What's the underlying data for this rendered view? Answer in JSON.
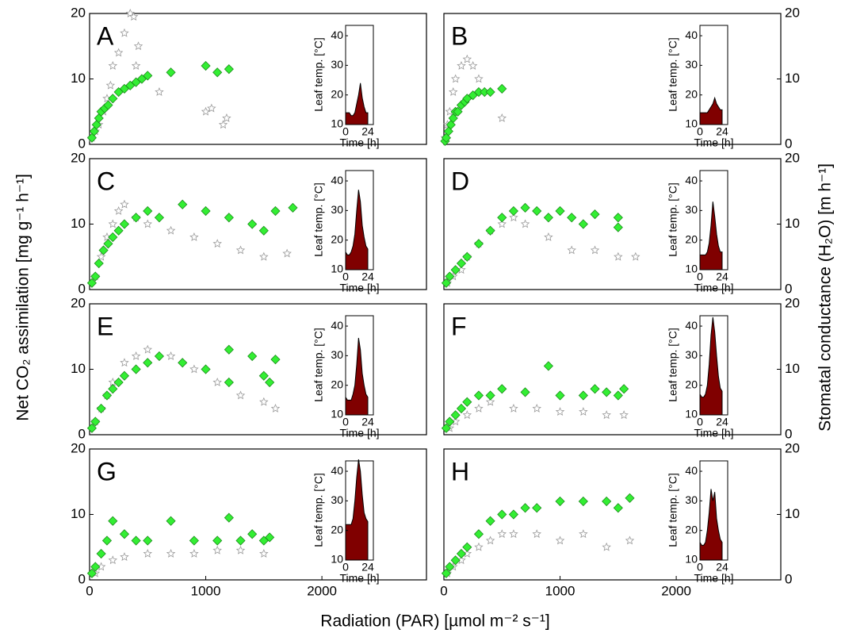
{
  "ylabel": "Net CO₂ assimilation [mg g⁻¹ h⁻¹]",
  "y2label": "Stomatal conductance (H₂O) [m h⁻¹]",
  "xlabel": "Radiation (PAR) [µmol m⁻² s⁻¹]",
  "chart_data": [
    {
      "type": "scatter",
      "label": "A",
      "xlim": [
        0,
        2900
      ],
      "ylim": [
        0,
        20
      ],
      "y2lim": [
        0,
        20
      ],
      "yticks": [
        0,
        10,
        20
      ],
      "series": [
        {
          "color": "#33ee33",
          "marker": "diamond",
          "x": [
            20,
            40,
            60,
            80,
            100,
            130,
            160,
            200,
            250,
            300,
            350,
            400,
            450,
            500,
            700,
            1000,
            1100,
            1200
          ],
          "values": [
            1,
            2,
            3,
            4,
            5,
            5.5,
            6,
            7,
            8,
            8.5,
            9,
            9.5,
            10,
            10.5,
            11,
            12,
            11,
            11.5
          ]
        },
        {
          "color": "#999999",
          "marker": "star",
          "axis": "y2",
          "x": [
            20,
            50,
            80,
            120,
            150,
            180,
            200,
            250,
            300,
            350,
            380,
            420,
            400,
            600,
            1000,
            1050,
            1150,
            1180
          ],
          "values": [
            1,
            2,
            3,
            5,
            7,
            9,
            12,
            14,
            17,
            20,
            19.5,
            15,
            12,
            8,
            5,
            5.5,
            3,
            4
          ]
        }
      ],
      "inset": {
        "type": "area",
        "xlabel": "Time [h]",
        "ylabel": "Leaf temp. [°C]",
        "color": "#800000",
        "xlim": [
          0,
          30
        ],
        "ylim": [
          10,
          43.5
        ],
        "xticks": [
          0,
          24
        ],
        "yticks": [
          10,
          20,
          30,
          40
        ],
        "x": [
          0,
          2,
          4,
          6,
          8,
          10,
          12,
          14,
          16,
          18,
          20,
          22,
          24
        ],
        "values": [
          14,
          14,
          14,
          13,
          13,
          14,
          17,
          20,
          24,
          19,
          16,
          14,
          14
        ]
      }
    },
    {
      "type": "scatter",
      "label": "B",
      "xlim": [
        0,
        2900
      ],
      "ylim": [
        0,
        20
      ],
      "y2lim": [
        0,
        20
      ],
      "y2ticks": [
        0,
        10,
        20
      ],
      "series": [
        {
          "color": "#33ee33",
          "marker": "diamond",
          "x": [
            10,
            20,
            40,
            60,
            80,
            100,
            120,
            150,
            180,
            200,
            250,
            300,
            350,
            400,
            500
          ],
          "values": [
            0.5,
            1,
            2,
            3,
            4,
            5,
            5,
            6,
            6.5,
            7,
            7.5,
            8,
            8,
            8,
            8.5
          ]
        },
        {
          "color": "#999999",
          "marker": "star",
          "axis": "y2",
          "x": [
            10,
            30,
            50,
            80,
            100,
            150,
            200,
            250,
            300,
            500
          ],
          "values": [
            1,
            3,
            5,
            8,
            10,
            12,
            13,
            12,
            10,
            4
          ]
        }
      ],
      "inset": {
        "type": "area",
        "xlabel": "Time [h]",
        "ylabel": "Leaf temp. [°C]",
        "color": "#800000",
        "xlim": [
          0,
          30
        ],
        "ylim": [
          10,
          43.5
        ],
        "xticks": [
          0,
          24
        ],
        "yticks": [
          10,
          20,
          30,
          40
        ],
        "x": [
          0,
          2,
          4,
          6,
          8,
          10,
          12,
          14,
          16,
          18,
          20,
          22,
          24
        ],
        "values": [
          14,
          14,
          14,
          14,
          14,
          15,
          16,
          17,
          19,
          17,
          16,
          15,
          15
        ]
      }
    },
    {
      "type": "scatter",
      "label": "C",
      "xlim": [
        0,
        2900
      ],
      "ylim": [
        0,
        20
      ],
      "y2lim": [
        0,
        20
      ],
      "yticks": [
        0,
        10,
        20
      ],
      "series": [
        {
          "color": "#33ee33",
          "marker": "diamond",
          "x": [
            20,
            50,
            80,
            120,
            160,
            200,
            250,
            300,
            400,
            500,
            600,
            800,
            1000,
            1200,
            1400,
            1500,
            1600,
            1750
          ],
          "values": [
            1,
            2,
            4,
            6,
            7,
            8,
            9,
            10,
            11,
            12,
            11,
            13,
            12,
            11,
            10,
            9,
            12,
            12.5
          ]
        },
        {
          "color": "#999999",
          "marker": "star",
          "axis": "y2",
          "x": [
            50,
            100,
            150,
            200,
            250,
            300,
            400,
            500,
            700,
            900,
            1100,
            1300,
            1500,
            1700
          ],
          "values": [
            2,
            5,
            8,
            10,
            12,
            13,
            11,
            10,
            9,
            8,
            7,
            6,
            5,
            5.5
          ]
        }
      ],
      "inset": {
        "type": "area",
        "xlabel": "Time [h]",
        "ylabel": "Leaf temp. [°C]",
        "color": "#800000",
        "xlim": [
          0,
          30
        ],
        "ylim": [
          10,
          43.5
        ],
        "xticks": [
          0,
          24
        ],
        "yticks": [
          10,
          20,
          30,
          40
        ],
        "x": [
          0,
          2,
          4,
          6,
          8,
          10,
          12,
          14,
          16,
          18,
          20,
          22,
          24
        ],
        "values": [
          16,
          15,
          15,
          16,
          18,
          22,
          30,
          37,
          33,
          25,
          21,
          18,
          17
        ]
      }
    },
    {
      "type": "scatter",
      "label": "D",
      "xlim": [
        0,
        2900
      ],
      "ylim": [
        0,
        20
      ],
      "y2lim": [
        0,
        20
      ],
      "y2ticks": [
        0,
        10,
        20
      ],
      "series": [
        {
          "color": "#33ee33",
          "marker": "diamond",
          "x": [
            20,
            50,
            100,
            150,
            200,
            300,
            400,
            500,
            600,
            700,
            800,
            900,
            1000,
            1100,
            1200,
            1300,
            1500,
            1500
          ],
          "values": [
            1,
            2,
            3,
            4,
            5,
            7,
            9,
            11,
            12,
            12.5,
            12,
            11,
            12,
            11,
            10,
            11.5,
            11,
            9.5
          ]
        },
        {
          "color": "#999999",
          "marker": "star",
          "axis": "y2",
          "x": [
            30,
            80,
            150,
            200,
            300,
            400,
            500,
            600,
            700,
            900,
            1100,
            1300,
            1500,
            1650
          ],
          "values": [
            1,
            2,
            3,
            5,
            7,
            9,
            10,
            11,
            10,
            8,
            6,
            6,
            5,
            5
          ]
        }
      ],
      "inset": {
        "type": "area",
        "xlabel": "Time [h]",
        "ylabel": "Leaf temp. [°C]",
        "color": "#800000",
        "xlim": [
          0,
          30
        ],
        "ylim": [
          10,
          43.5
        ],
        "xticks": [
          0,
          24
        ],
        "yticks": [
          10,
          20,
          30,
          40
        ],
        "x": [
          0,
          2,
          4,
          6,
          8,
          10,
          12,
          14,
          16,
          18,
          20,
          22,
          24
        ],
        "values": [
          15,
          15,
          15,
          15,
          16,
          19,
          25,
          33,
          28,
          22,
          18,
          16,
          16
        ]
      }
    },
    {
      "type": "scatter",
      "label": "E",
      "xlim": [
        0,
        2900
      ],
      "ylim": [
        0,
        20
      ],
      "y2lim": [
        0,
        20
      ],
      "yticks": [
        0,
        10,
        20
      ],
      "series": [
        {
          "color": "#33ee33",
          "marker": "diamond",
          "x": [
            20,
            50,
            100,
            150,
            200,
            250,
            300,
            400,
            500,
            600,
            800,
            1000,
            1200,
            1400,
            1500,
            1550,
            1600,
            1200
          ],
          "values": [
            1,
            2,
            4,
            6,
            7,
            8,
            9,
            10,
            11,
            12,
            11,
            10,
            13,
            12,
            9,
            8,
            11.5,
            8
          ]
        },
        {
          "color": "#999999",
          "marker": "star",
          "axis": "y2",
          "x": [
            50,
            100,
            150,
            200,
            300,
            400,
            500,
            700,
            900,
            1100,
            1300,
            1500,
            1600
          ],
          "values": [
            2,
            4,
            6,
            8,
            11,
            12,
            13,
            12,
            10,
            8,
            6,
            5,
            4
          ]
        }
      ],
      "inset": {
        "type": "area",
        "xlabel": "Time [h]",
        "ylabel": "Leaf temp. [°C]",
        "color": "#800000",
        "xlim": [
          0,
          30
        ],
        "ylim": [
          10,
          43.5
        ],
        "xticks": [
          0,
          24
        ],
        "yticks": [
          10,
          20,
          30,
          40
        ],
        "x": [
          0,
          2,
          4,
          6,
          8,
          10,
          12,
          14,
          16,
          18,
          20,
          22,
          24
        ],
        "values": [
          16,
          15,
          15,
          15,
          17,
          20,
          27,
          36,
          32,
          24,
          20,
          17,
          16
        ]
      }
    },
    {
      "type": "scatter",
      "label": "F",
      "xlim": [
        0,
        2900
      ],
      "ylim": [
        0,
        20
      ],
      "y2lim": [
        0,
        20
      ],
      "y2ticks": [
        0,
        10,
        20
      ],
      "series": [
        {
          "color": "#33ee33",
          "marker": "diamond",
          "x": [
            20,
            50,
            100,
            150,
            200,
            300,
            400,
            500,
            700,
            900,
            1000,
            1200,
            1300,
            1400,
            1500,
            1550
          ],
          "values": [
            1,
            2,
            3,
            4,
            5,
            6,
            6,
            7,
            6.5,
            10.5,
            6,
            6,
            7,
            6.5,
            6,
            7
          ]
        },
        {
          "color": "#999999",
          "marker": "star",
          "axis": "y2",
          "x": [
            50,
            100,
            200,
            300,
            400,
            600,
            800,
            1000,
            1200,
            1400,
            1550
          ],
          "values": [
            1,
            2,
            3,
            4,
            5,
            4,
            4,
            3.5,
            3.5,
            3,
            3
          ]
        }
      ],
      "inset": {
        "type": "area",
        "xlabel": "Time [h]",
        "ylabel": "Leaf temp. [°C]",
        "color": "#800000",
        "xlim": [
          0,
          30
        ],
        "ylim": [
          10,
          43.5
        ],
        "xticks": [
          0,
          24
        ],
        "yticks": [
          10,
          20,
          30,
          40
        ],
        "x": [
          0,
          2,
          4,
          6,
          8,
          10,
          12,
          14,
          16,
          18,
          20,
          22,
          24
        ],
        "values": [
          17,
          16,
          16,
          17,
          20,
          27,
          37,
          43,
          38,
          30,
          23,
          19,
          18
        ]
      }
    },
    {
      "type": "scatter",
      "label": "G",
      "xlim": [
        0,
        2900
      ],
      "ylim": [
        0,
        20
      ],
      "y2lim": [
        0,
        20
      ],
      "yticks": [
        0,
        10,
        20
      ],
      "xticks": [
        0,
        1000,
        2000
      ],
      "series": [
        {
          "color": "#33ee33",
          "marker": "diamond",
          "x": [
            20,
            50,
            100,
            150,
            200,
            300,
            400,
            500,
            700,
            900,
            1100,
            1200,
            1300,
            1400,
            1500,
            1550
          ],
          "values": [
            1,
            2,
            4,
            6,
            9,
            7,
            6,
            6,
            9,
            6,
            6,
            9.5,
            6,
            7,
            6,
            6.5
          ]
        },
        {
          "color": "#999999",
          "marker": "star",
          "axis": "y2",
          "x": [
            50,
            100,
            200,
            300,
            500,
            700,
            900,
            1100,
            1300,
            1500
          ],
          "values": [
            1,
            2,
            3,
            3.5,
            4,
            4,
            4,
            4.5,
            4.5,
            4
          ]
        }
      ],
      "inset": {
        "type": "area",
        "xlabel": "Time [h]",
        "ylabel": "Leaf temp. [°C]",
        "color": "#800000",
        "xlim": [
          0,
          30
        ],
        "ylim": [
          10,
          43.5
        ],
        "xticks": [
          0,
          24
        ],
        "yticks": [
          10,
          20,
          30,
          40
        ],
        "x": [
          0,
          2,
          4,
          6,
          8,
          10,
          12,
          14,
          16,
          18,
          20,
          22,
          24
        ],
        "values": [
          22,
          22,
          22,
          22,
          24,
          30,
          38,
          44,
          40,
          32,
          26,
          24,
          23
        ]
      }
    },
    {
      "type": "scatter",
      "label": "H",
      "xlim": [
        0,
        2900
      ],
      "ylim": [
        0,
        20
      ],
      "y2lim": [
        0,
        20
      ],
      "y2ticks": [
        0,
        10,
        20
      ],
      "xticks": [
        0,
        1000,
        2000
      ],
      "series": [
        {
          "color": "#33ee33",
          "marker": "diamond",
          "x": [
            20,
            50,
            100,
            150,
            200,
            300,
            400,
            500,
            600,
            700,
            800,
            1000,
            1200,
            1400,
            1500,
            1600
          ],
          "values": [
            1,
            2,
            3,
            4,
            5,
            7,
            9,
            10,
            10,
            11,
            11,
            12,
            12,
            12,
            11,
            12.5
          ]
        },
        {
          "color": "#999999",
          "marker": "star",
          "axis": "y2",
          "x": [
            30,
            80,
            150,
            200,
            300,
            400,
            500,
            600,
            800,
            1000,
            1200,
            1400,
            1600
          ],
          "values": [
            1,
            2,
            3,
            4,
            5,
            6,
            7,
            7,
            7,
            6,
            7,
            5,
            6
          ]
        }
      ],
      "inset": {
        "type": "area",
        "xlabel": "Time [h]",
        "ylabel": "Leaf temp. [°C]",
        "color": "#800000",
        "xlim": [
          0,
          30
        ],
        "ylim": [
          10,
          43.5
        ],
        "xticks": [
          0,
          24
        ],
        "yticks": [
          10,
          20,
          30,
          40
        ],
        "x": [
          0,
          2,
          4,
          6,
          8,
          10,
          12,
          14,
          16,
          18,
          20,
          22,
          24
        ],
        "values": [
          16,
          15,
          15,
          16,
          20,
          26,
          34,
          30,
          33,
          24,
          20,
          17,
          16
        ]
      }
    }
  ]
}
